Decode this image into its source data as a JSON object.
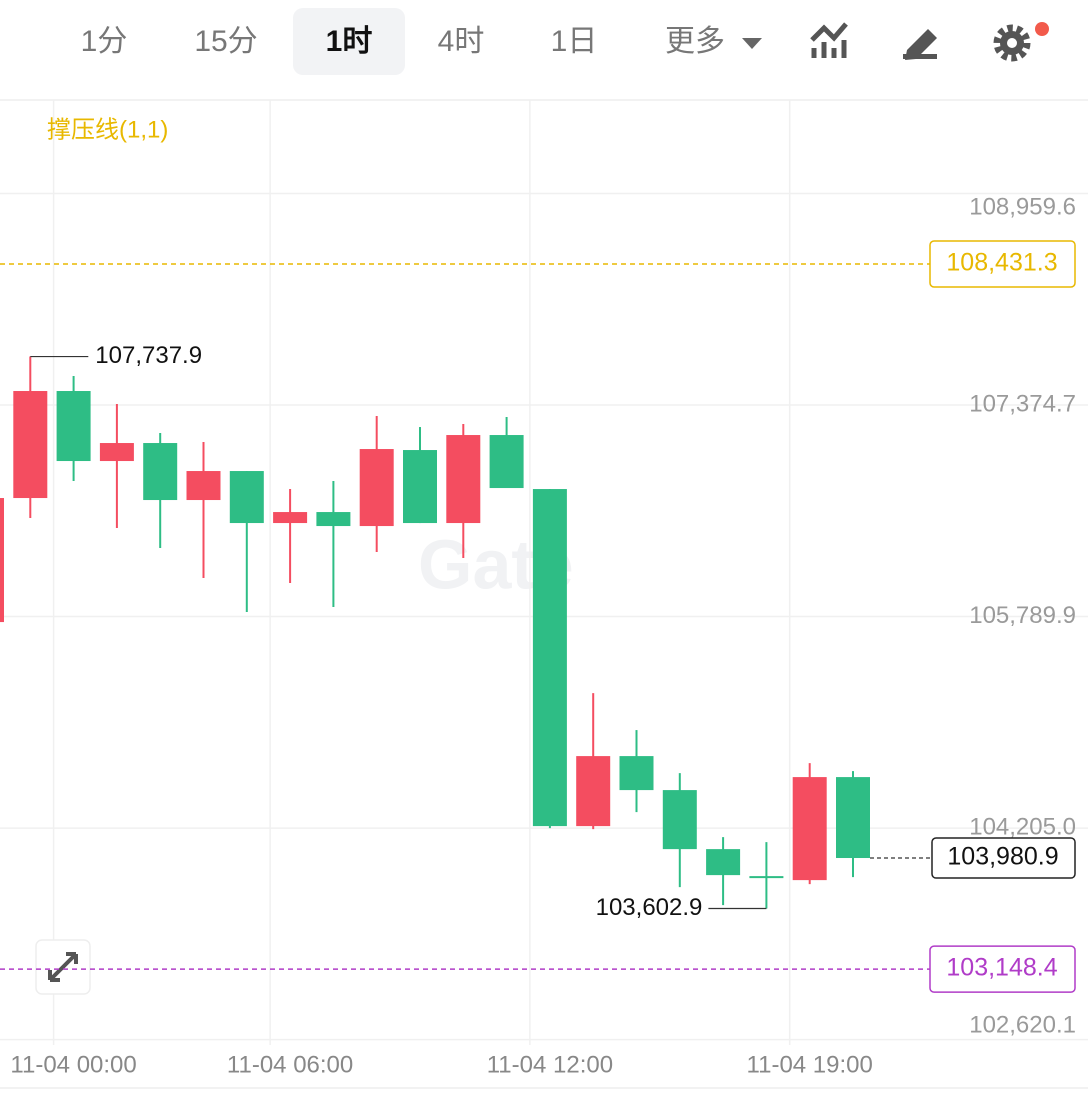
{
  "toolbar": {
    "tabs": [
      "1分",
      "15分",
      "1时",
      "4时",
      "1日",
      "更多"
    ],
    "active": 2
  },
  "chart_data": {
    "type": "candlestick",
    "indicator": "撑压线(1,1)",
    "watermark": "Gate",
    "categories": [
      null,
      null,
      "11-04 00:00",
      null,
      null,
      null,
      null,
      "11-04 06:00",
      null,
      null,
      null,
      null,
      null,
      "11-04 12:00",
      null,
      null,
      null,
      null,
      null,
      "11-04 19:00",
      null
    ],
    "open": [
      105748.7,
      106677.9,
      107479.7,
      106955.1,
      107090.0,
      106662.9,
      106880.2,
      106490.5,
      106572.9,
      106468.0,
      107037.5,
      106490.5,
      107149.9,
      106745.3,
      104220.0,
      104744.5,
      104489.8,
      104047.6,
      103845.3,
      103815.3,
      104587.2
    ],
    "high": [
      106677.9,
      107737.9,
      107592.1,
      107382.2,
      107164.9,
      107097.5,
      106880.2,
      106745.3,
      106805.2,
      107292.3,
      107209.9,
      107232.4,
      107284.8,
      106745.3,
      105216.6,
      104939.4,
      104617.1,
      104137.6,
      104100.1,
      104692.1,
      104632.1
    ],
    "low": [
      105748.7,
      106528.0,
      106805.2,
      106453.0,
      106303.2,
      106078.4,
      105823.6,
      106040.9,
      105861.1,
      106273.2,
      106490.5,
      106228.2,
      106752.8,
      104205.0,
      104197.5,
      104324.9,
      103762.9,
      103628.0,
      103602.9,
      103785.4,
      103837.8
    ],
    "close": [
      106677.9,
      107479.7,
      106955.1,
      107090.0,
      106662.9,
      106880.2,
      106490.5,
      106572.9,
      106468.0,
      107045.0,
      106490.5,
      107149.9,
      106752.8,
      104220.0,
      104744.5,
      104489.8,
      104047.6,
      103852.8,
      103830.3,
      104587.2,
      103980.9
    ],
    "up_color": "#f44d60",
    "down_color": "#2ebd85",
    "ylim": [
      102580,
      109660
    ],
    "yticks": [
      {
        "value": 108959.6,
        "label": "108,959.6"
      },
      {
        "value": 107374.7,
        "label": "107,374.7"
      },
      {
        "value": 105789.9,
        "label": "105,789.9"
      },
      {
        "value": 104205.0,
        "label": "104,205.0"
      },
      {
        "value": 102620.1,
        "label": "102,620.1"
      }
    ],
    "grid": true,
    "hlines": [
      {
        "value": 108431.3,
        "label": "108,431.3",
        "color": "#e8b800"
      },
      {
        "value": 103148.4,
        "label": "103,148.4",
        "color": "#b03cc8"
      }
    ],
    "high_label": {
      "value": 107737.9,
      "label": "107,737.9"
    },
    "low_label": {
      "value": 103602.9,
      "label": "103,602.9"
    },
    "last_price": {
      "value": 103980.9,
      "label": "103,980.9"
    }
  }
}
